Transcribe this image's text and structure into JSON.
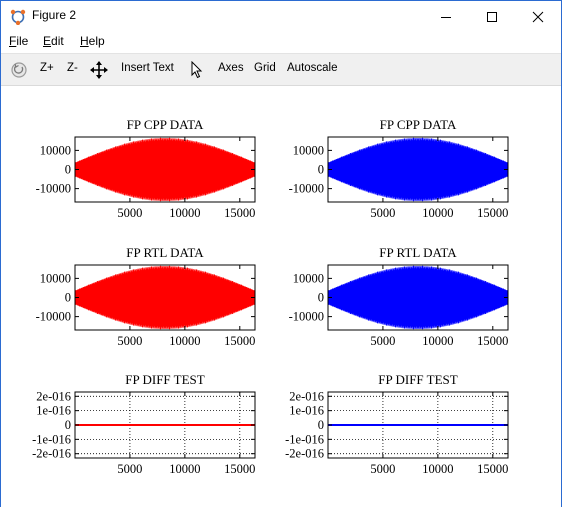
{
  "window": {
    "title": "Figure 2",
    "icon": "octave-figure-icon",
    "controls": [
      "minimize-icon",
      "maximize-icon",
      "close-icon"
    ]
  },
  "menu": {
    "file": {
      "underline": "F",
      "rest": "ile"
    },
    "edit": {
      "underline": "E",
      "rest": "dit"
    },
    "help": {
      "underline": "H",
      "rest": "elp"
    }
  },
  "toolbar": {
    "rotate_icon": "rotate-icon",
    "zoom_in": "Z+",
    "zoom_out": "Z-",
    "pan_icon": "pan-arrows-icon",
    "insert_text": "Insert Text",
    "select_icon": "cursor-arrow-icon",
    "axes": "Axes",
    "grid": "Grid",
    "autoscale": "Autoscale"
  },
  "chart_data": [
    {
      "type": "area",
      "title": "FP CPP DATA",
      "color": "#ff0000",
      "grid": false,
      "x_range": [
        1,
        16384
      ],
      "ylim": [
        -17000,
        17000
      ],
      "xticks": [
        5000,
        10000,
        15000
      ],
      "yticks": [
        10000,
        0,
        -10000
      ],
      "yticklabels": [
        "10000",
        "0",
        "-10000"
      ],
      "envelope": {
        "shape": "spindle",
        "peak_x": 8192,
        "peak_amplitude": 16000,
        "edge_amplitude": 3500
      }
    },
    {
      "type": "area",
      "title": "FP CPP DATA",
      "color": "#0000ff",
      "grid": false,
      "x_range": [
        1,
        16384
      ],
      "ylim": [
        -17000,
        17000
      ],
      "xticks": [
        5000,
        10000,
        15000
      ],
      "yticks": [
        10000,
        0,
        -10000
      ],
      "yticklabels": [
        "10000",
        "0",
        "-10000"
      ],
      "envelope": {
        "shape": "spindle",
        "peak_x": 8192,
        "peak_amplitude": 16000,
        "edge_amplitude": 3500
      }
    },
    {
      "type": "area",
      "title": "FP RTL DATA",
      "color": "#ff0000",
      "grid": false,
      "x_range": [
        1,
        16384
      ],
      "ylim": [
        -17000,
        17000
      ],
      "xticks": [
        5000,
        10000,
        15000
      ],
      "yticks": [
        10000,
        0,
        -10000
      ],
      "yticklabels": [
        "10000",
        "0",
        "-10000"
      ],
      "envelope": {
        "shape": "spindle",
        "peak_x": 8192,
        "peak_amplitude": 16000,
        "edge_amplitude": 3500
      }
    },
    {
      "type": "area",
      "title": "FP RTL DATA",
      "color": "#0000ff",
      "grid": false,
      "x_range": [
        1,
        16384
      ],
      "ylim": [
        -17000,
        17000
      ],
      "xticks": [
        5000,
        10000,
        15000
      ],
      "yticks": [
        10000,
        0,
        -10000
      ],
      "yticklabels": [
        "10000",
        "0",
        "-10000"
      ],
      "envelope": {
        "shape": "spindle",
        "peak_x": 8192,
        "peak_amplitude": 16000,
        "edge_amplitude": 3500
      }
    },
    {
      "type": "line",
      "title": "FP DIFF TEST",
      "color": "#ff0000",
      "grid": true,
      "x_range": [
        1,
        16384
      ],
      "ylim": [
        -2.3e-16,
        2.3e-16
      ],
      "xticks": [
        5000,
        10000,
        15000
      ],
      "yticks": [
        2e-16,
        1e-16,
        0,
        -1e-16,
        -2e-16
      ],
      "yticklabels": [
        "2e-016",
        "1e-016",
        "0",
        "-1e-016",
        "-2e-016"
      ],
      "series": [
        {
          "x": [
            1,
            16384
          ],
          "y": [
            0,
            0
          ]
        }
      ]
    },
    {
      "type": "line",
      "title": "FP DIFF TEST",
      "color": "#0000ff",
      "grid": true,
      "x_range": [
        1,
        16384
      ],
      "ylim": [
        -2.3e-16,
        2.3e-16
      ],
      "xticks": [
        5000,
        10000,
        15000
      ],
      "yticks": [
        2e-16,
        1e-16,
        0,
        -1e-16,
        -2e-16
      ],
      "yticklabels": [
        "2e-016",
        "1e-016",
        "0",
        "-1e-016",
        "-2e-016"
      ],
      "series": [
        {
          "x": [
            1,
            16384
          ],
          "y": [
            0,
            0
          ]
        }
      ]
    }
  ]
}
